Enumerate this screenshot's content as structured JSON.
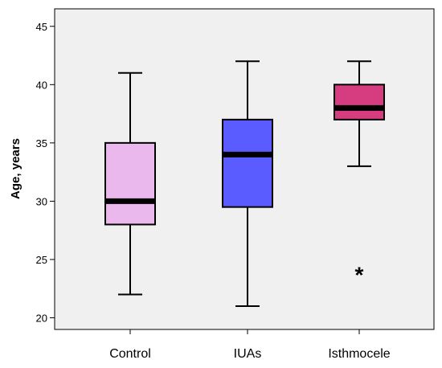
{
  "chart_data": {
    "type": "box",
    "title": "",
    "xlabel": "",
    "ylabel": "Age, years",
    "ylim": [
      19,
      46.5
    ],
    "yticks": [
      20,
      25,
      30,
      35,
      40,
      45
    ],
    "grid": false,
    "categories": [
      "Control",
      "IUAs",
      "Isthmocele"
    ],
    "boxes": [
      {
        "category": "Control",
        "min": 22,
        "q1": 28,
        "median": 30,
        "q3": 35,
        "max": 41,
        "outliers": [],
        "color": "#ebb8ee"
      },
      {
        "category": "IUAs",
        "min": 21,
        "q1": 29.5,
        "median": 34,
        "q3": 37,
        "max": 42,
        "outliers": [],
        "color": "#5a5cff"
      },
      {
        "category": "Isthmocele",
        "min": 33,
        "q1": 37,
        "median": 38,
        "q3": 40,
        "max": 42,
        "outliers": [
          24
        ],
        "color": "#d63d80"
      }
    ],
    "plot_background": "#f0f0f0",
    "outlier_marker": "*"
  }
}
